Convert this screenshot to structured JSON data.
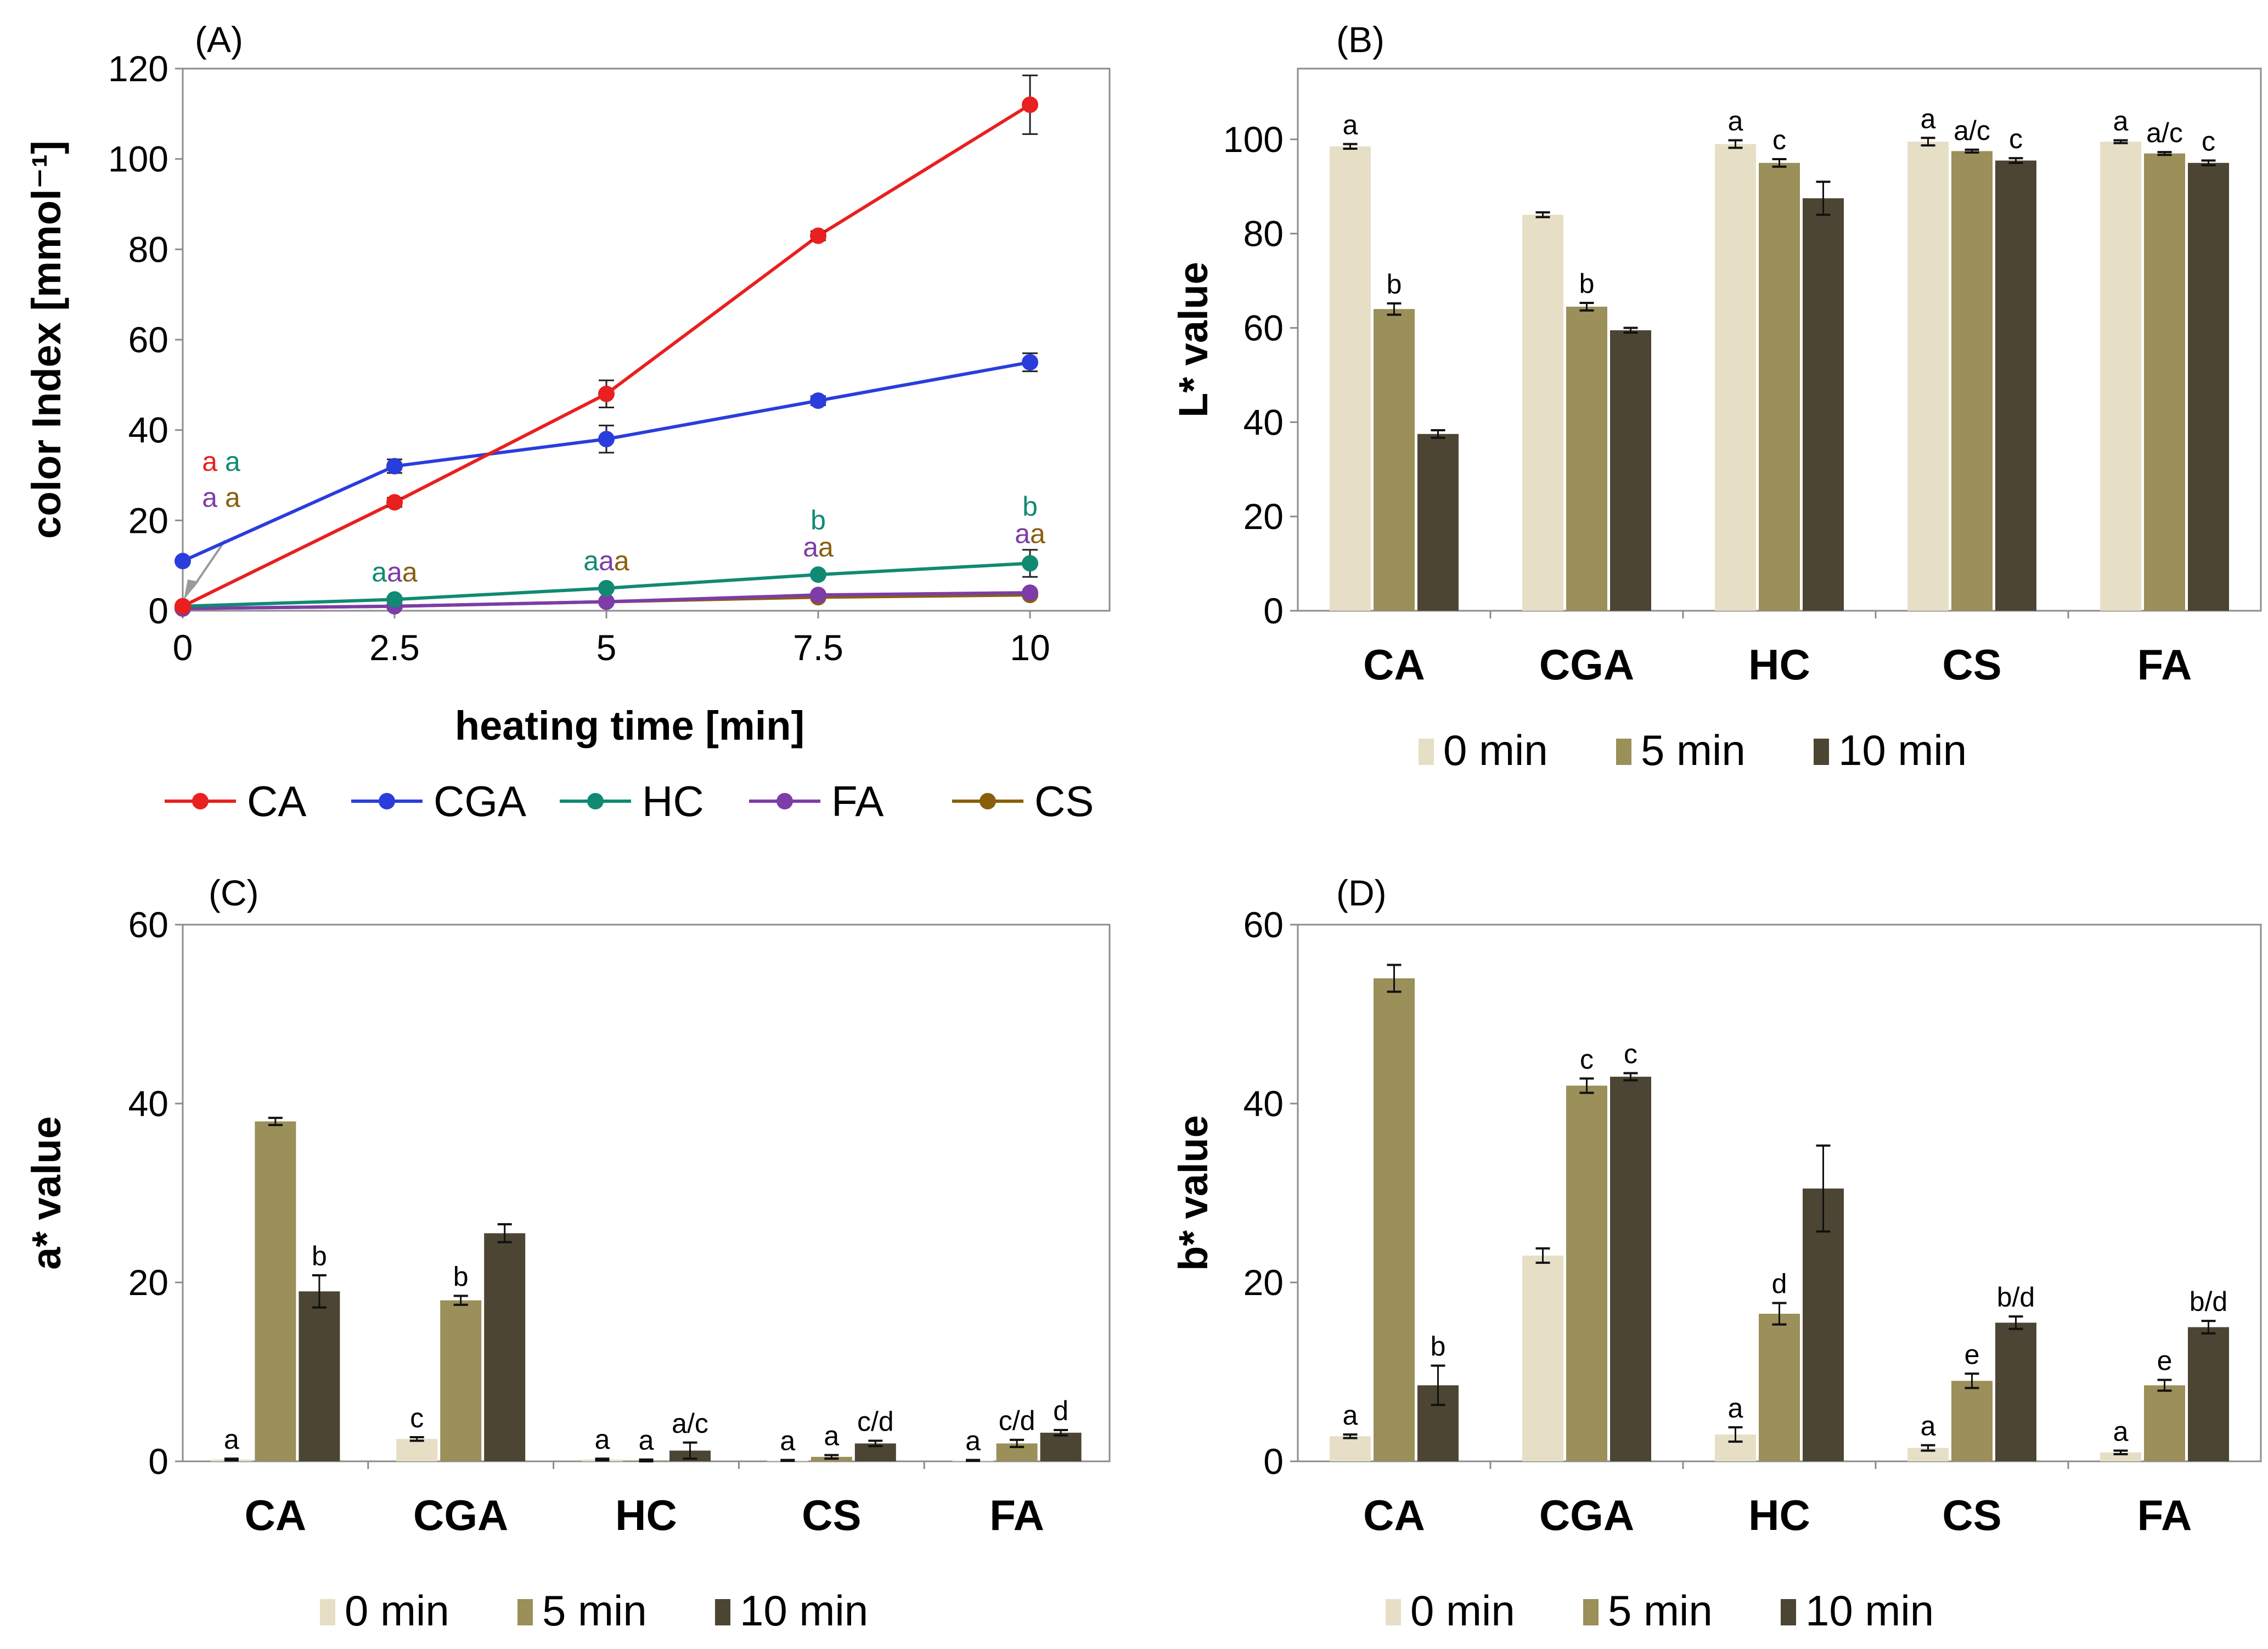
{
  "chart_data": [
    {
      "id": "A",
      "type": "line",
      "panel_label": "(A)",
      "xlabel": "heating time [min]",
      "ylabel": "color Index [mmol⁻¹]",
      "x": [
        0,
        2.5,
        5,
        7.5,
        10
      ],
      "x_tick_labels": [
        "0",
        "2.5",
        "5",
        "7.5",
        "10"
      ],
      "ylim": [
        0,
        120
      ],
      "y_tick_labels": [
        "0",
        "20",
        "40",
        "60",
        "80",
        "100",
        "120"
      ],
      "series": [
        {
          "name": "CA",
          "color": "#e8201f",
          "values": [
            1,
            24,
            48,
            83,
            112
          ],
          "errors": [
            0,
            1,
            3,
            1,
            6.5
          ]
        },
        {
          "name": "CGA",
          "color": "#2a3ddc",
          "values": [
            11,
            32,
            38,
            46.5,
            55
          ],
          "errors": [
            0.5,
            1.5,
            3,
            1,
            2
          ]
        },
        {
          "name": "HC",
          "color": "#108a72",
          "values": [
            1,
            2.5,
            5,
            8,
            10.5
          ],
          "errors": [
            0,
            0.5,
            0.5,
            0.5,
            3
          ]
        },
        {
          "name": "FA",
          "color": "#7d3ca8",
          "values": [
            0.5,
            1,
            2,
            3.5,
            4
          ],
          "errors": [
            0,
            0,
            0,
            0.5,
            0.5
          ]
        },
        {
          "name": "CS",
          "color": "#8a5f0c",
          "values": [
            0.5,
            1,
            2,
            3,
            3.5
          ],
          "errors": [
            0,
            0,
            0,
            0,
            0.5
          ]
        }
      ],
      "significance_letters": [
        {
          "x": 0,
          "y": 31,
          "letters": [
            {
              "t": "a",
              "color": "#e8201f"
            },
            {
              "t": " a",
              "color": "#108a72"
            }
          ]
        },
        {
          "x": 0,
          "y": 23,
          "letters": [
            {
              "t": "a",
              "color": "#7d3ca8"
            },
            {
              "t": " a",
              "color": "#8a5f0c"
            }
          ]
        },
        {
          "x": 2.5,
          "y": 6.5,
          "letters": [
            {
              "t": "a",
              "color": "#108a72"
            },
            {
              "t": "a",
              "color": "#7d3ca8"
            },
            {
              "t": "a",
              "color": "#8a5f0c"
            }
          ]
        },
        {
          "x": 5,
          "y": 9,
          "letters": [
            {
              "t": "a",
              "color": "#108a72"
            },
            {
              "t": "a",
              "color": "#7d3ca8"
            },
            {
              "t": "a",
              "color": "#8a5f0c"
            }
          ]
        },
        {
          "x": 7.5,
          "y": 18,
          "letters": [
            {
              "t": "b",
              "color": "#108a72"
            }
          ]
        },
        {
          "x": 7.5,
          "y": 12,
          "letters": [
            {
              "t": "a",
              "color": "#7d3ca8"
            },
            {
              "t": "a",
              "color": "#8a5f0c"
            }
          ]
        },
        {
          "x": 10,
          "y": 21,
          "letters": [
            {
              "t": "b",
              "color": "#108a72"
            }
          ]
        },
        {
          "x": 10,
          "y": 15,
          "letters": [
            {
              "t": "a",
              "color": "#7d3ca8"
            },
            {
              "t": "a",
              "color": "#8a5f0c"
            }
          ]
        }
      ],
      "legend": [
        "CA",
        "CGA",
        "HC",
        "FA",
        "CS"
      ]
    },
    {
      "id": "B",
      "type": "bar",
      "panel_label": "(B)",
      "ylabel": "L* value",
      "categories": [
        "CA",
        "CGA",
        "HC",
        "CS",
        "FA"
      ],
      "ylim": [
        0,
        115
      ],
      "y_ticks": [
        0,
        20,
        40,
        60,
        80,
        100
      ],
      "y_tick_labels": [
        "0",
        "20",
        "40",
        "60",
        "80",
        "100"
      ],
      "series": [
        {
          "name": "0 min",
          "color": "#e6dfc6",
          "values": [
            98.5,
            84,
            99,
            99.5,
            99.5
          ],
          "errors": [
            0.5,
            0.5,
            0.8,
            0.8,
            0.3
          ],
          "labels": [
            "a",
            "",
            "a",
            "a",
            "a"
          ]
        },
        {
          "name": "5 min",
          "color": "#9b8f5a",
          "values": [
            64,
            64.5,
            95,
            97.5,
            97
          ],
          "errors": [
            1.2,
            0.8,
            0.8,
            0.3,
            0.3
          ],
          "labels": [
            "b",
            "b",
            "c",
            "a/c",
            "a/c"
          ]
        },
        {
          "name": "10 min",
          "color": "#4c4533",
          "values": [
            37.5,
            59.5,
            87.5,
            95.5,
            95
          ],
          "errors": [
            0.8,
            0.5,
            3.5,
            0.5,
            0.5
          ],
          "labels": [
            "",
            "",
            "",
            "c",
            "c"
          ]
        }
      ],
      "legend": [
        "0 min",
        "5 min",
        "10 min"
      ]
    },
    {
      "id": "C",
      "type": "bar",
      "panel_label": "(C)",
      "ylabel": "a* value",
      "categories": [
        "CA",
        "CGA",
        "HC",
        "CS",
        "FA"
      ],
      "ylim": [
        0,
        60
      ],
      "y_ticks": [
        0,
        20,
        40,
        60
      ],
      "y_tick_labels": [
        "0",
        "20",
        "40",
        "60"
      ],
      "series": [
        {
          "name": "0 min",
          "color": "#e6dfc6",
          "values": [
            0.2,
            2.5,
            0.2,
            0.1,
            0.1
          ],
          "errors": [
            0.1,
            0.2,
            0.1,
            0.05,
            0.05
          ],
          "labels": [
            "a",
            "c",
            "a",
            "a",
            "a"
          ]
        },
        {
          "name": "5 min",
          "color": "#9b8f5a",
          "values": [
            38,
            18,
            0.1,
            0.5,
            2
          ],
          "errors": [
            0.4,
            0.5,
            0.1,
            0.2,
            0.4
          ],
          "labels": [
            "",
            "b",
            "a",
            "a",
            "c/d"
          ]
        },
        {
          "name": "10 min",
          "color": "#4c4533",
          "values": [
            19,
            25.5,
            1.2,
            2,
            3.2
          ],
          "errors": [
            1.8,
            1.0,
            0.9,
            0.3,
            0.3
          ],
          "labels": [
            "b",
            "",
            "a/c",
            "c/d",
            "d"
          ]
        }
      ],
      "legend": [
        "0 min",
        "5 min",
        "10 min"
      ]
    },
    {
      "id": "D",
      "type": "bar",
      "panel_label": "(D)",
      "ylabel": "b* value",
      "categories": [
        "CA",
        "CGA",
        "HC",
        "CS",
        "FA"
      ],
      "ylim": [
        0,
        60
      ],
      "y_ticks": [
        0,
        20,
        40,
        60
      ],
      "y_tick_labels": [
        "0",
        "20",
        "40",
        "60"
      ],
      "series": [
        {
          "name": "0 min",
          "color": "#e6dfc6",
          "values": [
            2.8,
            23,
            3,
            1.5,
            1
          ],
          "errors": [
            0.2,
            0.8,
            0.8,
            0.3,
            0.2
          ],
          "labels": [
            "a",
            "",
            "a",
            "a",
            "a"
          ]
        },
        {
          "name": "5 min",
          "color": "#9b8f5a",
          "values": [
            54,
            42,
            16.5,
            9,
            8.5
          ],
          "errors": [
            1.5,
            0.8,
            1.2,
            0.8,
            0.6
          ],
          "labels": [
            "",
            "c",
            "d",
            "e",
            "e"
          ]
        },
        {
          "name": "10 min",
          "color": "#4c4533",
          "values": [
            8.5,
            43,
            30.5,
            15.5,
            15
          ],
          "errors": [
            2.2,
            0.4,
            4.8,
            0.7,
            0.7
          ],
          "labels": [
            "b",
            "c",
            "",
            "b/d",
            "b/d"
          ]
        }
      ],
      "legend": [
        "0 min",
        "5 min",
        "10 min"
      ]
    }
  ]
}
